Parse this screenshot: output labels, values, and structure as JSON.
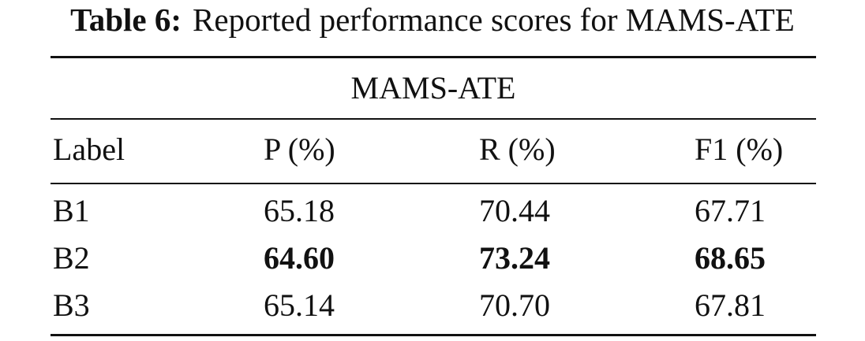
{
  "caption": {
    "label": "Table 6:",
    "text": "Reported performance scores for MAMS-ATE"
  },
  "table": {
    "group_header": "MAMS-ATE",
    "columns": [
      "Label",
      "P (%)",
      "R (%)",
      "F1 (%)"
    ],
    "rows": [
      {
        "label": "B1",
        "p": "65.18",
        "r": "70.44",
        "f1": "67.71",
        "bold": false
      },
      {
        "label": "B2",
        "p": "64.60",
        "r": "73.24",
        "f1": "68.65",
        "bold": true
      },
      {
        "label": "B3",
        "p": "65.14",
        "r": "70.70",
        "f1": "67.81",
        "bold": false
      }
    ]
  }
}
